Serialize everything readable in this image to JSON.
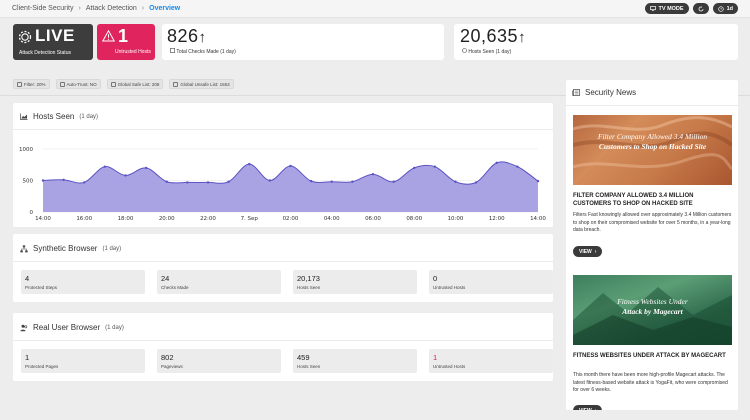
{
  "breadcrumb": {
    "items": [
      "Client-Side Security",
      "Attack Detection",
      "Overview"
    ]
  },
  "top_actions": {
    "tv_mode": "TV MODE",
    "period": "1d"
  },
  "kpis": {
    "live": {
      "value": "LIVE",
      "label": "Attack Detection Status"
    },
    "untrusted": {
      "value": "1",
      "label": "Untrusted Hosts"
    },
    "checks": {
      "value": "826",
      "label": "Total Checks Made (1 day)"
    },
    "hosts": {
      "value": "20,635",
      "label": "Hosts Seen (1 day)"
    }
  },
  "filters": [
    {
      "label": "Filter: 20%"
    },
    {
      "label": "Auto-Trust: NO"
    },
    {
      "label": "Global Safe List: 208"
    },
    {
      "label": "Global Unsafe List: 1553"
    }
  ],
  "hosts_seen": {
    "title": "Hosts Seen",
    "period": "(1 day)"
  },
  "chart_data": {
    "type": "area",
    "title": "Hosts Seen",
    "xlabel": "",
    "ylabel": "",
    "ylim": [
      0,
      1000
    ],
    "y_ticks": [
      "1000",
      "500",
      "0"
    ],
    "x_ticks": [
      "14:00",
      "16:00",
      "18:00",
      "20:00",
      "22:00",
      "7. Sep",
      "02:00",
      "04:00",
      "06:00",
      "08:00",
      "10:00",
      "12:00",
      "14:00"
    ],
    "color": "#8b85d6",
    "x": [
      "14:00",
      "15:00",
      "16:00",
      "17:00",
      "18:00",
      "19:00",
      "20:00",
      "21:00",
      "22:00",
      "23:00",
      "00:00",
      "01:00",
      "02:00",
      "03:00",
      "04:00",
      "05:00",
      "06:00",
      "07:00",
      "08:00",
      "09:00",
      "10:00",
      "11:00",
      "12:00",
      "13:00",
      "14:00"
    ],
    "values": [
      500,
      510,
      470,
      720,
      580,
      700,
      480,
      470,
      470,
      480,
      760,
      500,
      730,
      490,
      480,
      480,
      600,
      480,
      700,
      720,
      480,
      470,
      780,
      720,
      490
    ]
  },
  "synthetic": {
    "title": "Synthetic Browser",
    "period": "(1 day)",
    "stats": [
      {
        "value": "4",
        "label": "Protected Steps"
      },
      {
        "value": "24",
        "label": "Checks Made"
      },
      {
        "value": "20,173",
        "label": "Hosts Seen"
      },
      {
        "value": "0",
        "label": "Untrusted Hosts"
      }
    ]
  },
  "real_user": {
    "title": "Real User Browser",
    "period": "(1 day)",
    "stats": [
      {
        "value": "1",
        "label": "Protected Pages"
      },
      {
        "value": "802",
        "label": "Pageviews"
      },
      {
        "value": "459",
        "label": "Hosts Seen"
      },
      {
        "value": "1",
        "label": "Untrusted Hosts"
      }
    ]
  },
  "news": {
    "title": "Security News",
    "view_label": "VIEW",
    "articles": [
      {
        "image_text_line1": "Filter Company Allowed 3.4 Million",
        "image_text_line2": "Customers to Shop on Hacked Site",
        "headline": "FILTER COMPANY ALLOWED 3.4 MILLION CUSTOMERS TO SHOP ON HACKED SITE",
        "summary": "Filters Fast knowingly allowed over approximately 3.4 Million customers to shop on their compromised website for over 5 months, in a year-long data breach."
      },
      {
        "image_text_line1": "Fitness Websites Under",
        "image_text_line2": "Attack by Magecart",
        "headline": "FITNESS WEBSITES UNDER ATTACK BY MAGECART",
        "summary": "This month there have been more high-profile Magecart attacks. The latest fitness-based website attack is YogaFit, who were compromised for over 6 weeks."
      }
    ]
  },
  "colors": {
    "accent": "#1e88e5",
    "alert": "#e0245e",
    "dark": "#3d3d3d"
  }
}
